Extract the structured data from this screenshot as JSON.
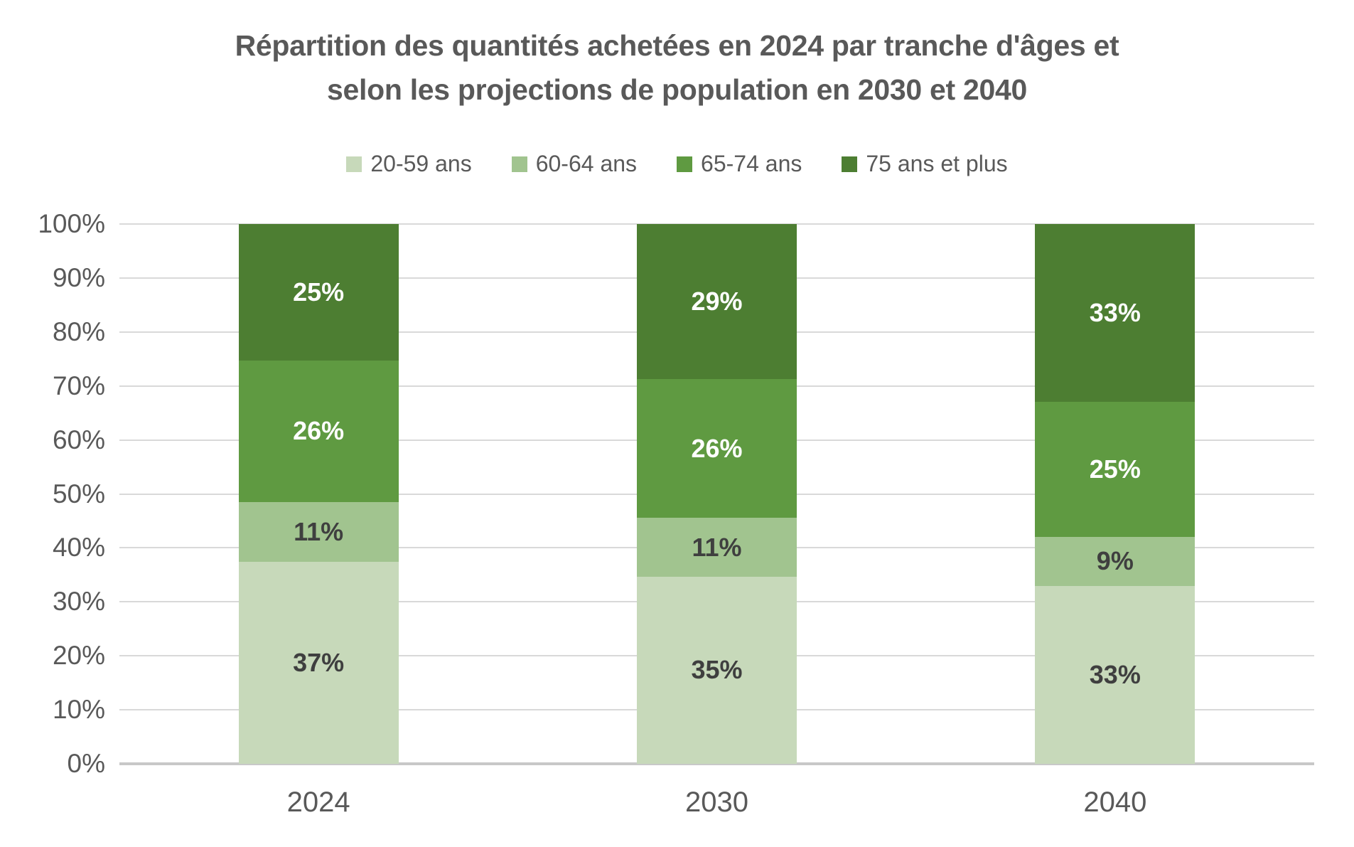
{
  "title_line1": "Répartition des quantités achetées en 2024 par tranche d'âges et",
  "title_line2": "selon les projections de population en 2030 et 2040",
  "colors": {
    "title_text": "#595959",
    "axis_text": "#595959",
    "gridline": "#D9D9D9",
    "baseline": "#C8C8C8",
    "label_on_light": "#3F3F3F",
    "label_on_dark": "#FFFFFF"
  },
  "chart_data": {
    "type": "bar",
    "subtype": "stacked-100-percent",
    "title": "Répartition des quantités achetées en 2024 par tranche d'âges et selon les projections de population en 2030 et 2040",
    "categories": [
      "2024",
      "2030",
      "2040"
    ],
    "series": [
      {
        "name": "20-59 ans",
        "color": "#C7D9BA",
        "label_color": "#3F3F3F",
        "values": [
          37,
          35,
          33
        ]
      },
      {
        "name": "60-64 ans",
        "color": "#A1C48F",
        "label_color": "#3F3F3F",
        "values": [
          11,
          11,
          9
        ]
      },
      {
        "name": "65-74 ans",
        "color": "#5F9A41",
        "label_color": "#FFFFFF",
        "values": [
          26,
          26,
          25
        ]
      },
      {
        "name": "75 ans et plus",
        "color": "#4D7E32",
        "label_color": "#FFFFFF",
        "values": [
          25,
          29,
          33
        ]
      }
    ],
    "value_suffix": "%",
    "y_ticks": [
      "0%",
      "10%",
      "20%",
      "30%",
      "40%",
      "50%",
      "60%",
      "70%",
      "80%",
      "90%",
      "100%"
    ],
    "ylim": [
      0,
      100
    ],
    "grid": true,
    "legend_position": "top-center",
    "xlabel": "",
    "ylabel": ""
  }
}
